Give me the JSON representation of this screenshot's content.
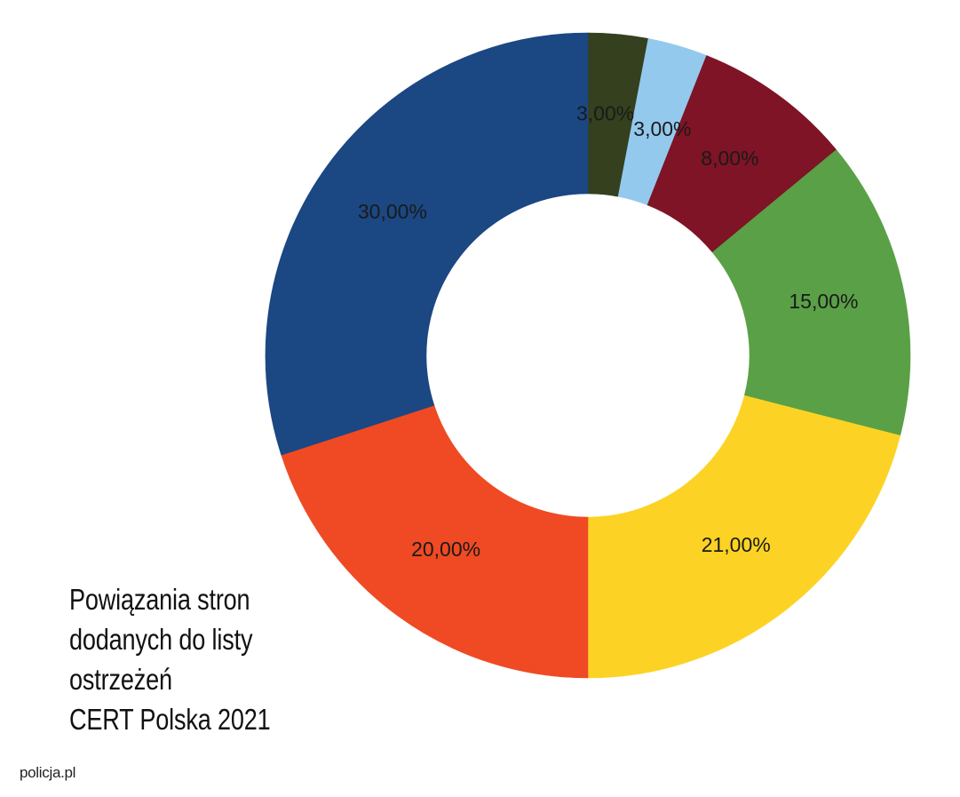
{
  "chart_data": {
    "type": "pie",
    "variant": "donut",
    "title_lines": [
      "Powiązania stron",
      "dodanych do listy",
      "ostrzeżeń",
      "CERT Polska 2021"
    ],
    "slices": [
      {
        "label": "3,00%",
        "value": 3,
        "color": "#34401e"
      },
      {
        "label": "3,00%",
        "value": 3,
        "color": "#94c9ee"
      },
      {
        "label": "8,00%",
        "value": 8,
        "color": "#7e1425"
      },
      {
        "label": "15,00%",
        "value": 15,
        "color": "#5aa046"
      },
      {
        "label": "21,00%",
        "value": 21,
        "color": "#fcd324"
      },
      {
        "label": "20,00%",
        "value": 20,
        "color": "#ef4a23"
      },
      {
        "label": "30,00%",
        "value": 30,
        "color": "#1b4783"
      }
    ],
    "start_angle": "top",
    "direction": "clockwise",
    "legend": "none"
  },
  "source": "policja.pl"
}
